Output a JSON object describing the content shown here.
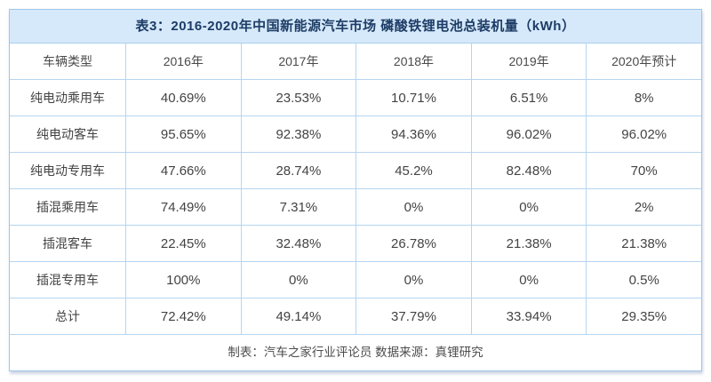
{
  "chart_data": {
    "type": "table",
    "title": "表3：2016-2020年中国新能源汽车市场 磷酸铁锂电池总装机量（kWh）",
    "columns": [
      "车辆类型",
      "2016年",
      "2017年",
      "2018年",
      "2019年",
      "2020年预计"
    ],
    "rows": [
      {
        "label": "纯电动乘用车",
        "values": [
          "40.69%",
          "23.53%",
          "10.71%",
          "6.51%",
          "8%"
        ]
      },
      {
        "label": "纯电动客车",
        "values": [
          "95.65%",
          "92.38%",
          "94.36%",
          "96.02%",
          "96.02%"
        ]
      },
      {
        "label": "纯电动专用车",
        "values": [
          "47.66%",
          "28.74%",
          "45.2%",
          "82.48%",
          "70%"
        ]
      },
      {
        "label": "插混乘用车",
        "values": [
          "74.49%",
          "7.31%",
          "0%",
          "0%",
          "2%"
        ]
      },
      {
        "label": "插混客车",
        "values": [
          "22.45%",
          "32.48%",
          "26.78%",
          "21.38%",
          "21.38%"
        ]
      },
      {
        "label": "插混专用车",
        "values": [
          "100%",
          "0%",
          "0%",
          "0%",
          "0.5%"
        ]
      },
      {
        "label": "总计",
        "values": [
          "72.42%",
          "49.14%",
          "37.79%",
          "33.94%",
          "29.35%"
        ]
      }
    ],
    "footnote": "制表：汽车之家行业评论员 数据来源：真锂研究",
    "layout": {
      "grid": "on",
      "unit": "percent share"
    }
  },
  "colors": {
    "title_bg": "#d6e9fa",
    "title_text": "#1d3c66",
    "border": "#b5d5f0",
    "outer_border": "#9ec6e8",
    "cell_text": "#434343"
  }
}
